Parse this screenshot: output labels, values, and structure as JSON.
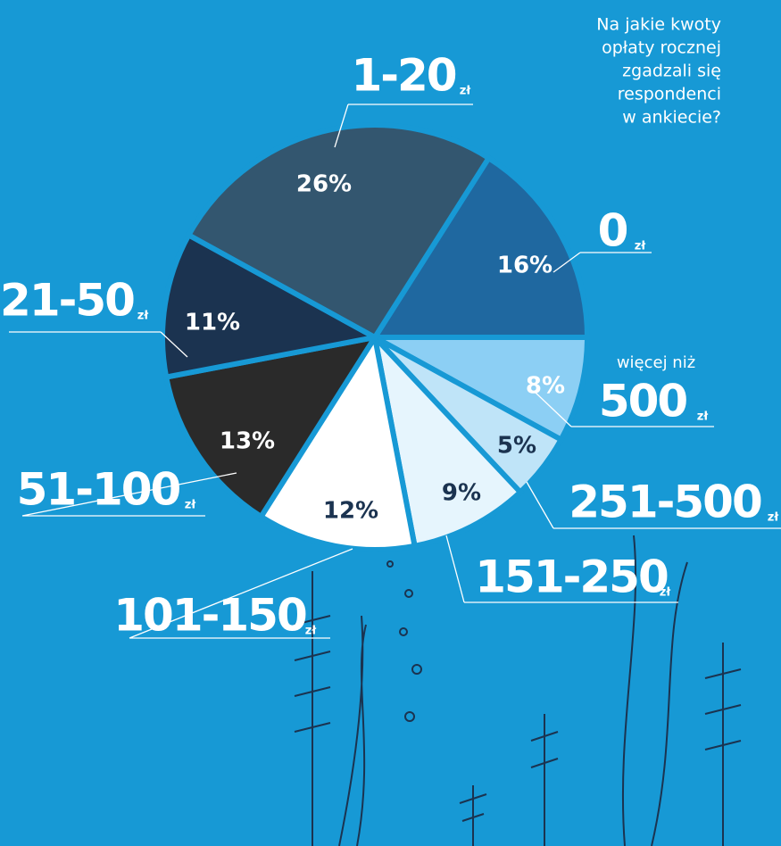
{
  "chart_data": {
    "type": "pie",
    "title": [
      "Na jakie kwoty",
      "opłaty rocznej",
      "zgadzali się",
      "respondenci",
      "w ankiecie?"
    ],
    "categories": [
      "0",
      "500",
      "251-500",
      "151-250",
      "101-150",
      "51-100",
      "21-50",
      "1-20"
    ],
    "unit": "zł",
    "annotation": "więcej niż",
    "values": [
      16,
      8,
      5,
      9,
      12,
      13,
      11,
      26
    ],
    "value_labels": [
      "16%",
      "8%",
      "5%",
      "9%",
      "12%",
      "13%",
      "11%",
      "26%"
    ],
    "colors": [
      "#1f68a0",
      "#8ccff4",
      "#bfe4f8",
      "#e6f5fd",
      "#ffffff",
      "#2a2a2a",
      "#1b3350",
      "#33566f"
    ]
  }
}
